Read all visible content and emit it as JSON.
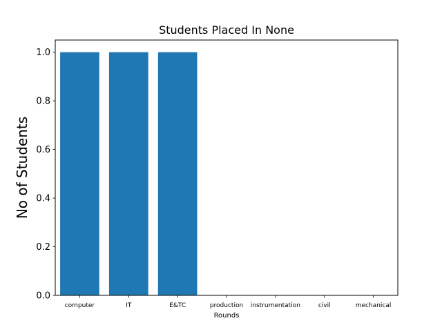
{
  "chart_data": {
    "type": "bar",
    "title": "Students Placed In None",
    "xlabel": "Rounds",
    "ylabel": "No of Students",
    "categories": [
      "computer",
      "IT",
      "E&TC",
      "production",
      "instrumentation",
      "civil",
      "mechanical"
    ],
    "values": [
      1,
      1,
      1,
      0,
      0,
      0,
      0
    ],
    "ylim": [
      0,
      1.05
    ],
    "yticks": [
      "0.0",
      "0.2",
      "0.4",
      "0.6",
      "0.8",
      "1.0"
    ],
    "grid": false,
    "bar_color": "#1f77b4"
  }
}
